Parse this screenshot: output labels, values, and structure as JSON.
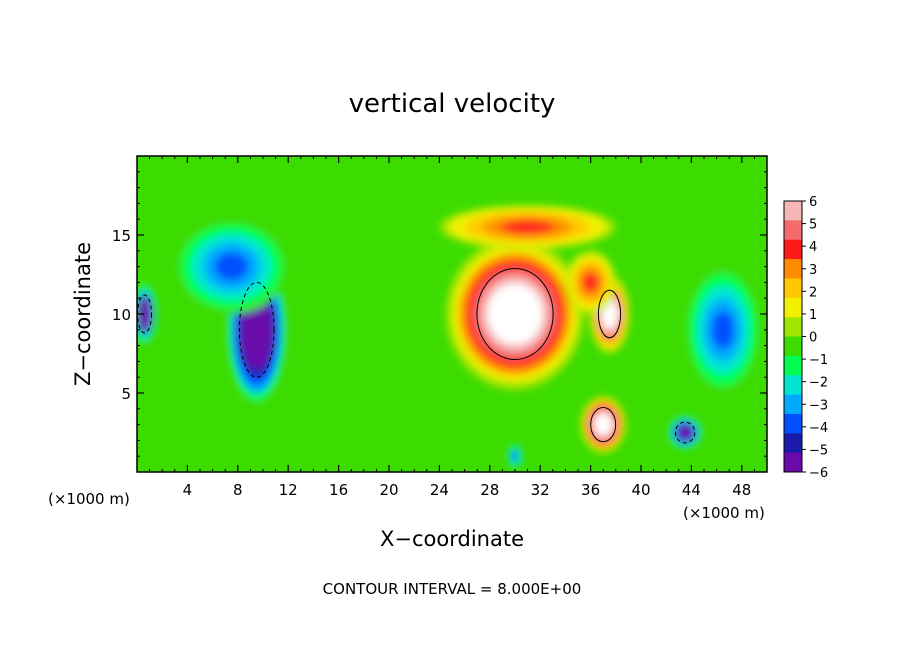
{
  "chart_data": {
    "type": "heatmap",
    "title": "vertical velocity",
    "xlabel": "X−coordinate",
    "ylabel": "Z−coordinate",
    "x_unit_left": "(×1000 m)",
    "x_unit_right": "(×1000 m)",
    "footer": "CONTOUR INTERVAL = 8.000E+00",
    "xlim": [
      0,
      50
    ],
    "ylim": [
      0,
      20
    ],
    "x_ticks": [
      4,
      8,
      12,
      16,
      20,
      24,
      28,
      32,
      36,
      40,
      44,
      48
    ],
    "x_tick_labels": [
      "4",
      "8",
      "12",
      "16",
      "20",
      "24",
      "28",
      "32",
      "36",
      "40",
      "44",
      "48"
    ],
    "y_ticks": [
      5,
      10,
      15
    ],
    "y_tick_labels": [
      "5",
      "10",
      "15"
    ],
    "colorbar": {
      "min": -6,
      "max": 6,
      "ticks": [
        6,
        5,
        4,
        3,
        2,
        1,
        0,
        -1,
        -2,
        -3,
        -4,
        -5,
        -6
      ],
      "tick_labels": [
        "6",
        "5",
        "4",
        "3",
        "2",
        "1",
        "0",
        "−1",
        "−2",
        "−3",
        "−4",
        "−5",
        "−6"
      ],
      "colors": [
        "#f7b6b6",
        "#f56b6b",
        "#ff1a1a",
        "#ff8c00",
        "#ffc800",
        "#f0f000",
        "#a0e600",
        "#3cdc00",
        "#00ff50",
        "#00e6d2",
        "#00aaff",
        "#0050ff",
        "#1a1aaa",
        "#6a0aaa"
      ]
    },
    "features": [
      {
        "kind": "updraft",
        "x": 30,
        "z": 10,
        "sx": 5.5,
        "sz": 4.8,
        "w": 9
      },
      {
        "kind": "updraft",
        "x": 31,
        "z": 15.5,
        "sx": 7,
        "sz": 1.4,
        "w": 4
      },
      {
        "kind": "updraft",
        "x": 37,
        "z": 3,
        "sx": 1.8,
        "sz": 1.8,
        "w": 9
      },
      {
        "kind": "updraft",
        "x": 37.5,
        "z": 10,
        "sx": 1.6,
        "sz": 2.5,
        "w": 8
      },
      {
        "kind": "updraft",
        "x": 36,
        "z": 12,
        "sx": 2,
        "sz": 2,
        "w": 4
      },
      {
        "kind": "downdraft",
        "x": 9.5,
        "z": 9,
        "sx": 2.5,
        "sz": 5,
        "w": -9
      },
      {
        "kind": "downdraft",
        "x": 7.5,
        "z": 13,
        "sx": 4.5,
        "sz": 3,
        "w": -4
      },
      {
        "kind": "downdraft",
        "x": 46.5,
        "z": 9,
        "sx": 3,
        "sz": 4,
        "w": -4
      },
      {
        "kind": "downdraft",
        "x": 43.5,
        "z": 2.5,
        "sx": 1.4,
        "sz": 1.1,
        "w": -7
      },
      {
        "kind": "downdraft",
        "x": 0.6,
        "z": 10,
        "sx": 1,
        "sz": 2,
        "w": -8
      },
      {
        "kind": "downdraft",
        "x": 30,
        "z": 1,
        "sx": 0.6,
        "sz": 0.8,
        "w": -4
      }
    ]
  }
}
